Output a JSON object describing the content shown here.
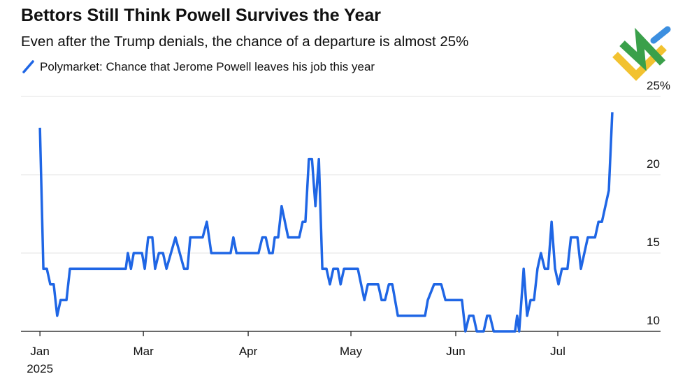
{
  "chart_data": {
    "type": "line",
    "title": "Bettors Still Think Powell Survives the Year",
    "subtitle": "Even after the Trump denials, the chance of a departure is almost 25%",
    "x_sublabel": "2025",
    "series": [
      {
        "name": "Polymarket: Chance that Jerome Powell leaves his job this year",
        "color": "#1f66e5",
        "x": [
          0,
          1,
          2,
          3,
          4,
          5,
          6,
          7.7,
          8.7,
          24.9,
          25.5,
          26.4,
          27.2,
          29.6,
          30.4,
          31.4,
          32.6,
          33.4,
          34.5,
          35.7,
          36.7,
          39.3,
          41.8,
          42.8,
          43.6,
          47.2,
          48.4,
          49.7,
          55.3,
          56.1,
          57,
          63.4,
          64.5,
          65.5,
          66.5,
          67.5,
          68.1,
          69.1,
          70.1,
          72,
          75.2,
          76.2,
          77,
          78,
          78.9,
          79.9,
          80.9,
          81.9,
          83.1,
          84.1,
          85.1,
          86.4,
          87.2,
          88.2,
          92.2,
          94.1,
          95.1,
          98.1,
          99.1,
          100.1,
          101.2,
          102.2,
          103.8,
          111.7,
          112.5,
          114.3,
          116.4,
          117.6,
          122.4,
          123.4,
          124.5,
          125.7,
          126.7,
          128.7,
          129.7,
          130.5,
          131.6,
          137.8,
          138.4,
          139,
          140.3,
          141.3,
          142.3,
          143.3,
          144.3,
          145.3,
          146.4,
          147.4,
          148.4,
          149.4,
          150.4,
          151.4,
          153,
          154,
          155.9,
          156.9,
          157.9,
          158.9,
          161,
          162,
          163,
          165,
          166
        ],
        "values": [
          23,
          14,
          14,
          13,
          13,
          11,
          12,
          12,
          14,
          14,
          15,
          14,
          15,
          15,
          14,
          16,
          16,
          14,
          15,
          15,
          14,
          16,
          14,
          14,
          16,
          16,
          17,
          15,
          15,
          16,
          15,
          15,
          16,
          16,
          15,
          15,
          16,
          16,
          18,
          16,
          16,
          17,
          17,
          21,
          21,
          18,
          21,
          14,
          14,
          13,
          14,
          14,
          13,
          14,
          14,
          12,
          13,
          13,
          12,
          12,
          13,
          13,
          11,
          11,
          12,
          13,
          13,
          12,
          12,
          10,
          11,
          11,
          10,
          10,
          11,
          11,
          10,
          10,
          11,
          10,
          14,
          11,
          12,
          12,
          14,
          15,
          14,
          14,
          17,
          14,
          13,
          14,
          14,
          16,
          16,
          14,
          15,
          16,
          16,
          17,
          17,
          19,
          24
        ]
      }
    ],
    "xlim": [
      -5.5,
      180
    ],
    "xticks": [
      {
        "value": 0,
        "label": "Jan"
      },
      {
        "value": 30,
        "label": "Mar"
      },
      {
        "value": 60.4,
        "label": "Apr"
      },
      {
        "value": 90.2,
        "label": "May"
      },
      {
        "value": 120.6,
        "label": "Jun"
      },
      {
        "value": 150.2,
        "label": "Jul"
      }
    ],
    "ylim": [
      10,
      25
    ],
    "yticks": [
      10,
      15,
      20,
      {
        "value": 25,
        "label": "25%"
      }
    ],
    "grid": true
  }
}
